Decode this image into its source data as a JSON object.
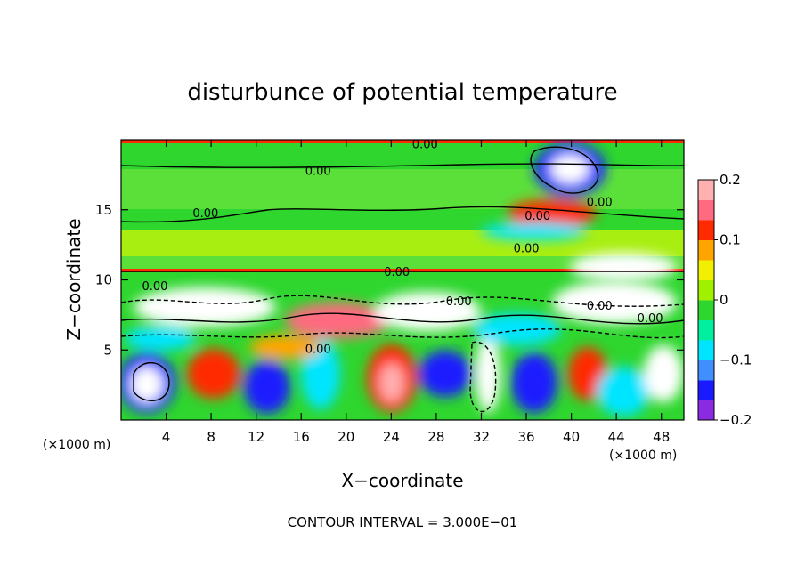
{
  "chart_data": {
    "type": "heatmap",
    "title": "disturbunce of potential temperature",
    "xlabel": "X−coordinate",
    "ylabel": "Z−coordinate",
    "x_unit": "(×1000 m)",
    "x_unit_right": "(×1000 m)",
    "xlim": [
      0,
      50
    ],
    "ylim": [
      0,
      20
    ],
    "x_ticks": [
      4,
      8,
      12,
      16,
      20,
      24,
      28,
      32,
      36,
      40,
      44,
      48
    ],
    "y_ticks": [
      5,
      10,
      15
    ],
    "colorbar": {
      "range": [
        -0.2,
        0.2
      ],
      "tick_values": [
        0.2,
        0.1,
        0,
        -0.1,
        -0.2
      ],
      "tick_labels": [
        "0.2",
        "0.1",
        "0",
        "−0.1",
        "−0.2"
      ],
      "colors": [
        "#8a2be2",
        "#1a1aff",
        "#3f8fff",
        "#00e5ff",
        "#00f0a0",
        "#2ed62e",
        "#a0f000",
        "#f0f000",
        "#ffa500",
        "#ff2a00",
        "#ff6a80",
        "#ffb0b0"
      ]
    },
    "contour_labels": [
      {
        "text": "0.00",
        "x": 27.0,
        "z": 19.7
      },
      {
        "text": "0.00",
        "x": 17.5,
        "z": 17.8
      },
      {
        "text": "0.00",
        "x": 7.5,
        "z": 14.8
      },
      {
        "text": "0.00",
        "x": 42.5,
        "z": 15.6
      },
      {
        "text": "0.00",
        "x": 37.0,
        "z": 14.6
      },
      {
        "text": "0.00",
        "x": 36.0,
        "z": 12.3
      },
      {
        "text": "0.00",
        "x": 24.5,
        "z": 10.6
      },
      {
        "text": "0.00",
        "x": 3.0,
        "z": 9.6
      },
      {
        "text": "0.00",
        "x": 30.0,
        "z": 8.5
      },
      {
        "text": "0.00",
        "x": 42.5,
        "z": 8.2
      },
      {
        "text": "0.00",
        "x": 47.0,
        "z": 7.3
      },
      {
        "text": "0.00",
        "x": 17.5,
        "z": 5.1
      }
    ],
    "grid": false,
    "legend": "colorbar-right"
  },
  "footer": {
    "contour_interval": "CONTOUR INTERVAL = 3.000E−01"
  }
}
